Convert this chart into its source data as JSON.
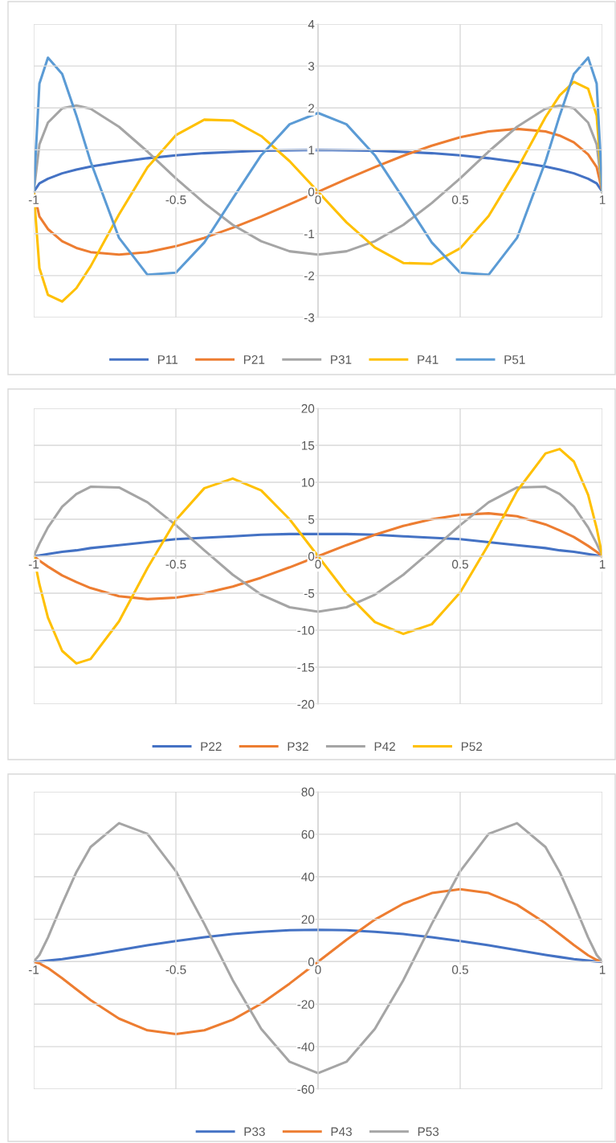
{
  "chart_data": [
    {
      "type": "line",
      "x": [
        -1,
        -0.98,
        -0.95,
        -0.9,
        -0.85,
        -0.8,
        -0.7,
        -0.6,
        -0.5,
        -0.4,
        -0.3,
        -0.2,
        -0.1,
        0,
        0.1,
        0.2,
        0.3,
        0.4,
        0.5,
        0.6,
        0.7,
        0.8,
        0.85,
        0.9,
        0.95,
        0.98,
        1
      ],
      "series": [
        {
          "name": "P11",
          "color": "#4472c4",
          "values": [
            0,
            0.2,
            0.31,
            0.44,
            0.53,
            0.6,
            0.71,
            0.8,
            0.87,
            0.92,
            0.95,
            0.98,
            0.99,
            1,
            0.99,
            0.98,
            0.95,
            0.92,
            0.87,
            0.8,
            0.71,
            0.6,
            0.53,
            0.44,
            0.31,
            0.2,
            0
          ]
        },
        {
          "name": "P21",
          "color": "#ed7d31",
          "values": [
            0,
            -0.59,
            -0.89,
            -1.18,
            -1.34,
            -1.44,
            -1.5,
            -1.44,
            -1.3,
            -1.1,
            -0.86,
            -0.59,
            -0.3,
            0,
            0.3,
            0.59,
            0.86,
            1.1,
            1.3,
            1.44,
            1.5,
            1.44,
            1.34,
            1.18,
            0.89,
            0.59,
            0
          ]
        },
        {
          "name": "P31",
          "color": "#a5a5a5",
          "values": [
            0,
            1.13,
            1.65,
            1.99,
            2.06,
            1.98,
            1.55,
            0.96,
            0.32,
            -0.27,
            -0.79,
            -1.18,
            -1.42,
            -1.5,
            -1.42,
            -1.18,
            -0.79,
            -0.27,
            0.32,
            0.96,
            1.55,
            1.98,
            2.06,
            1.99,
            1.65,
            1.13,
            0
          ]
        },
        {
          "name": "P41",
          "color": "#ffc000",
          "values": [
            0,
            -1.82,
            -2.46,
            -2.62,
            -2.3,
            -1.78,
            -0.54,
            0.58,
            1.35,
            1.72,
            1.7,
            1.33,
            0.73,
            0,
            -0.73,
            -1.33,
            -1.7,
            -1.72,
            -1.35,
            -0.58,
            0.54,
            1.78,
            2.3,
            2.62,
            2.46,
            1.82,
            0
          ]
        },
        {
          "name": "P51",
          "color": "#5b9bd5",
          "values": [
            0,
            2.58,
            3.2,
            2.81,
            1.82,
            0.72,
            -1.1,
            -1.98,
            -1.93,
            -1.21,
            -0.16,
            0.87,
            1.61,
            1.88,
            1.61,
            0.87,
            -0.16,
            -1.21,
            -1.93,
            -1.98,
            -1.1,
            0.72,
            1.82,
            2.81,
            3.2,
            2.58,
            0
          ]
        }
      ],
      "xlim": [
        -1,
        1
      ],
      "xticks": [
        -1,
        -0.5,
        0,
        0.5,
        1
      ],
      "ylim": [
        -3,
        4
      ],
      "yticks": [
        -3,
        -2,
        -1,
        0,
        1,
        2,
        3,
        4
      ],
      "grid": true,
      "legend": "bottom"
    },
    {
      "type": "line",
      "x": [
        -1,
        -0.98,
        -0.95,
        -0.9,
        -0.85,
        -0.8,
        -0.7,
        -0.6,
        -0.5,
        -0.4,
        -0.3,
        -0.2,
        -0.1,
        0,
        0.1,
        0.2,
        0.3,
        0.4,
        0.5,
        0.6,
        0.7,
        0.8,
        0.85,
        0.9,
        0.95,
        0.98,
        1
      ],
      "series": [
        {
          "name": "P22",
          "color": "#4472c4",
          "values": [
            0,
            0.1,
            0.3,
            0.6,
            0.8,
            1.1,
            1.5,
            1.9,
            2.3,
            2.5,
            2.7,
            2.9,
            3.0,
            3,
            3.0,
            2.9,
            2.7,
            2.5,
            2.3,
            1.9,
            1.5,
            1.1,
            0.8,
            0.6,
            0.3,
            0.1,
            0
          ]
        },
        {
          "name": "P32",
          "color": "#ed7d31",
          "values": [
            0,
            -0.6,
            -1.4,
            -2.6,
            -3.5,
            -4.3,
            -5.4,
            -5.8,
            -5.6,
            -5.0,
            -4.1,
            -2.9,
            -1.5,
            0,
            1.5,
            2.9,
            4.1,
            5.0,
            5.6,
            5.8,
            5.4,
            4.3,
            3.5,
            2.6,
            1.4,
            0.6,
            0
          ]
        },
        {
          "name": "P42",
          "color": "#a5a5a5",
          "values": [
            0,
            1.7,
            3.9,
            6.7,
            8.4,
            9.4,
            9.3,
            7.3,
            4.2,
            0.8,
            -2.5,
            -5.2,
            -6.9,
            -7.5,
            -6.9,
            -5.2,
            -2.5,
            0.8,
            4.2,
            7.3,
            9.3,
            9.4,
            8.4,
            6.7,
            3.9,
            1.7,
            0
          ]
        },
        {
          "name": "P52",
          "color": "#ffc000",
          "values": [
            0,
            -3.8,
            -8.3,
            -12.8,
            -14.5,
            -13.9,
            -8.8,
            -1.6,
            4.9,
            9.2,
            10.5,
            8.9,
            5.0,
            0,
            -5.0,
            -8.9,
            -10.5,
            -9.2,
            -4.9,
            1.6,
            8.8,
            13.9,
            14.5,
            12.8,
            8.3,
            3.8,
            0
          ]
        }
      ],
      "xlim": [
        -1,
        1
      ],
      "xticks": [
        -1,
        -0.5,
        0,
        0.5,
        1
      ],
      "ylim": [
        -20,
        20
      ],
      "yticks": [
        -20,
        -15,
        -10,
        -5,
        0,
        5,
        10,
        15,
        20
      ],
      "grid": true,
      "legend": "bottom"
    },
    {
      "type": "line",
      "x": [
        -1,
        -0.98,
        -0.95,
        -0.9,
        -0.85,
        -0.8,
        -0.7,
        -0.6,
        -0.5,
        -0.4,
        -0.3,
        -0.2,
        -0.1,
        0,
        0.1,
        0.2,
        0.3,
        0.4,
        0.5,
        0.6,
        0.7,
        0.8,
        0.85,
        0.9,
        0.95,
        0.98,
        1
      ],
      "series": [
        {
          "name": "P33",
          "color": "#4472c4",
          "values": [
            0,
            0.1,
            0.5,
            1.2,
            2.2,
            3.2,
            5.5,
            7.7,
            9.7,
            11.5,
            13.0,
            14.1,
            14.8,
            15,
            14.8,
            14.1,
            13.0,
            11.5,
            9.7,
            7.7,
            5.5,
            3.2,
            2.2,
            1.2,
            0.5,
            0.1,
            0
          ]
        },
        {
          "name": "P43",
          "color": "#ed7d31",
          "values": [
            0,
            -0.8,
            -3.0,
            -7.8,
            -13.0,
            -18.1,
            -26.8,
            -32.3,
            -34.1,
            -32.3,
            -27.3,
            -19.8,
            -10.3,
            0,
            10.3,
            19.8,
            27.3,
            32.3,
            34.1,
            32.3,
            26.8,
            18.1,
            13.0,
            7.8,
            3.0,
            0.8,
            0
          ]
        },
        {
          "name": "P53",
          "color": "#a5a5a5",
          "values": [
            0,
            3.2,
            11.4,
            27.3,
            42.2,
            54.0,
            65.2,
            60.2,
            42.6,
            17.8,
            -8.7,
            -31.6,
            -47.1,
            -52.5,
            -47.1,
            -31.6,
            -8.7,
            17.8,
            42.6,
            60.2,
            65.2,
            54.0,
            42.2,
            27.3,
            11.4,
            3.2,
            0
          ]
        }
      ],
      "xlim": [
        -1,
        1
      ],
      "xticks": [
        -1,
        -0.5,
        0,
        0.5,
        1
      ],
      "ylim": [
        -60,
        80
      ],
      "yticks": [
        -60,
        -40,
        -20,
        0,
        20,
        40,
        60,
        80
      ],
      "grid": true,
      "legend": "bottom"
    }
  ]
}
